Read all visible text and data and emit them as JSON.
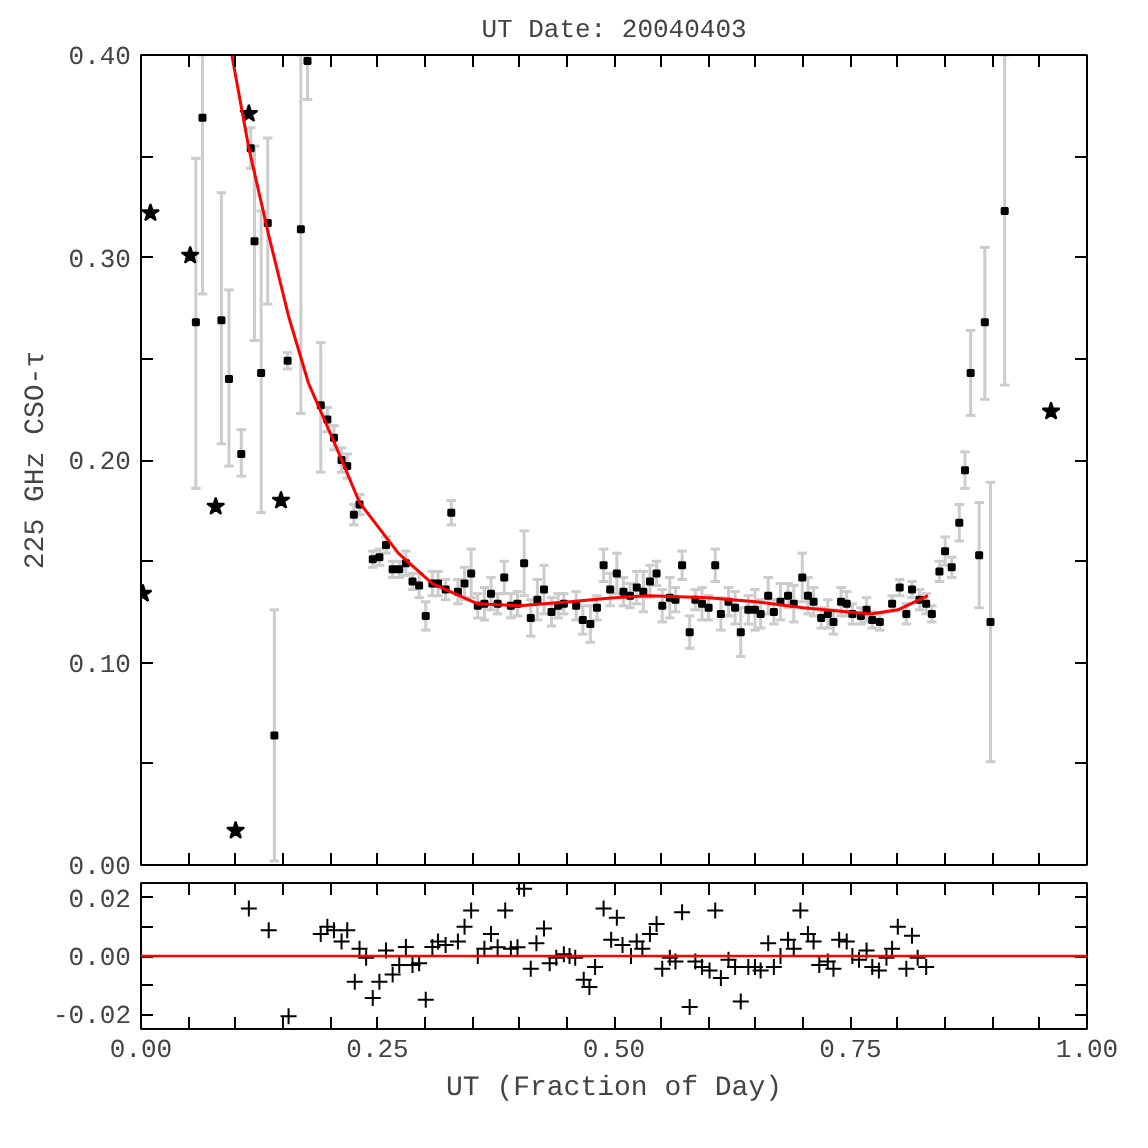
{
  "chart_data": [
    {
      "type": "scatter",
      "title": "UT Date: 20040403",
      "ylabel": "225 GHz CSO-τ",
      "xlim": [
        0,
        1
      ],
      "ylim": [
        0,
        0.4
      ],
      "xticks": [
        {
          "value": 0,
          "label": null
        },
        {
          "value": 0.05,
          "label": null
        },
        {
          "value": 0.1,
          "label": null
        },
        {
          "value": 0.15,
          "label": null
        },
        {
          "value": 0.2,
          "label": null
        },
        {
          "value": 0.25,
          "label": null
        },
        {
          "value": 0.3,
          "label": null
        },
        {
          "value": 0.35,
          "label": null
        },
        {
          "value": 0.4,
          "label": null
        },
        {
          "value": 0.45,
          "label": null
        },
        {
          "value": 0.5,
          "label": null
        },
        {
          "value": 0.55,
          "label": null
        },
        {
          "value": 0.6,
          "label": null
        },
        {
          "value": 0.65,
          "label": null
        },
        {
          "value": 0.7,
          "label": null
        },
        {
          "value": 0.75,
          "label": null
        },
        {
          "value": 0.8,
          "label": null
        },
        {
          "value": 0.85,
          "label": null
        },
        {
          "value": 0.9,
          "label": null
        },
        {
          "value": 0.95,
          "label": null
        },
        {
          "value": 1,
          "label": null
        }
      ],
      "yticks": [
        {
          "value": 0,
          "label": "0.00"
        },
        {
          "value": 0.05,
          "label": null
        },
        {
          "value": 0.1,
          "label": "0.10"
        },
        {
          "value": 0.15,
          "label": null
        },
        {
          "value": 0.2,
          "label": "0.20"
        },
        {
          "value": 0.25,
          "label": null
        },
        {
          "value": 0.3,
          "label": "0.30"
        },
        {
          "value": 0.35,
          "label": null
        },
        {
          "value": 0.4,
          "label": "0.40"
        }
      ],
      "tick_labels": "y",
      "grid": false,
      "series": [
        {
          "marker": "square",
          "color": "#000000",
          "x": [
            0.058,
            0.065,
            0.085,
            0.093,
            0.106,
            0.116,
            0.12,
            0.127,
            0.134,
            0.141,
            0.155,
            0.169,
            0.176,
            0.19,
            0.197,
            0.204,
            0.212,
            0.218,
            0.225,
            0.231,
            0.245,
            0.252,
            0.259,
            0.266,
            0.273,
            0.28,
            0.287,
            0.294,
            0.301,
            0.308,
            0.314,
            0.322,
            0.328,
            0.335,
            0.342,
            0.349,
            0.356,
            0.363,
            0.37,
            0.377,
            0.384,
            0.391,
            0.398,
            0.405,
            0.412,
            0.419,
            0.426,
            0.434,
            0.441,
            0.447,
            0.46,
            0.467,
            0.475,
            0.482,
            0.489,
            0.496,
            0.503,
            0.51,
            0.517,
            0.524,
            0.531,
            0.538,
            0.545,
            0.551,
            0.559,
            0.565,
            0.572,
            0.58,
            0.586,
            0.593,
            0.6,
            0.607,
            0.613,
            0.621,
            0.628,
            0.634,
            0.642,
            0.649,
            0.655,
            0.663,
            0.669,
            0.676,
            0.684,
            0.69,
            0.699,
            0.705,
            0.711,
            0.719,
            0.726,
            0.732,
            0.74,
            0.746,
            0.752,
            0.761,
            0.767,
            0.773,
            0.781,
            0.794,
            0.802,
            0.809,
            0.815,
            0.823,
            0.83,
            0.836,
            0.844,
            0.85,
            0.857,
            0.865,
            0.871,
            0.877,
            0.886,
            0.892,
            0.898,
            0.913
          ],
          "values": [
            0.268,
            0.369,
            0.269,
            0.24,
            0.203,
            0.354,
            0.308,
            0.243,
            0.317,
            0.064,
            0.249,
            0.314,
            0.397,
            0.227,
            0.22,
            0.211,
            0.2,
            0.197,
            0.173,
            0.178,
            0.151,
            0.152,
            0.158,
            0.146,
            0.146,
            0.149,
            0.14,
            0.138,
            0.123,
            0.139,
            0.139,
            0.136,
            0.174,
            0.135,
            0.139,
            0.144,
            0.128,
            0.129,
            0.134,
            0.129,
            0.142,
            0.128,
            0.129,
            0.149,
            0.122,
            0.131,
            0.136,
            0.125,
            0.128,
            0.129,
            0.128,
            0.121,
            0.119,
            0.127,
            0.148,
            0.136,
            0.144,
            0.135,
            0.133,
            0.137,
            0.135,
            0.14,
            0.144,
            0.128,
            0.132,
            0.131,
            0.148,
            0.115,
            0.131,
            0.129,
            0.127,
            0.148,
            0.124,
            0.13,
            0.127,
            0.115,
            0.126,
            0.126,
            0.124,
            0.133,
            0.125,
            0.13,
            0.133,
            0.129,
            0.142,
            0.133,
            0.13,
            0.122,
            0.124,
            0.12,
            0.13,
            0.129,
            0.124,
            0.123,
            0.126,
            0.121,
            0.12,
            0.129,
            0.137,
            0.124,
            0.136,
            0.131,
            0.129,
            0.124,
            0.145,
            0.155,
            0.147,
            0.169,
            0.195,
            0.243,
            0.153,
            0.268,
            0.12,
            0.323
          ],
          "errors": [
            [
              0.186,
              0.349
            ],
            [
              0.282,
              0.4
            ],
            [
              0.208,
              0.332
            ],
            [
              0.197,
              0.284
            ],
            [
              0.192,
              0.215
            ],
            0.01,
            [
              0.259,
              0.355
            ],
            [
              0.174,
              0.323
            ],
            [
              0.277,
              0.359
            ],
            [
              0.002,
              0.126
            ],
            0.004,
            [
              0.223,
              0.4
            ],
            [
              0.378,
              0.4
            ],
            [
              0.194,
              0.258
            ],
            0.006,
            0.006,
            0.006,
            0.006,
            0.005,
            0.005,
            0.004,
            0.004,
            0.004,
            0.004,
            0.004,
            0.006,
            0.004,
            0.006,
            0.007,
            0.006,
            0.006,
            0.005,
            0.006,
            0.006,
            0.008,
            0.012,
            0.006,
            0.008,
            0.008,
            0.005,
            0.008,
            0.006,
            0.006,
            0.016,
            0.009,
            0.01,
            0.012,
            0.007,
            0.006,
            0.005,
            0.007,
            0.007,
            0.009,
            0.006,
            0.008,
            0.008,
            0.01,
            0.007,
            0.006,
            0.008,
            0.01,
            0.008,
            0.006,
            0.008,
            0.01,
            0.006,
            0.007,
            0.008,
            0.005,
            0.008,
            0.006,
            0.008,
            0.008,
            0.007,
            0.008,
            0.012,
            0.007,
            0.01,
            0.007,
            0.009,
            0.006,
            0.009,
            0.006,
            0.009,
            0.012,
            0.009,
            0.007,
            0.005,
            0.007,
            0.006,
            0.007,
            0.006,
            0.005,
            0.004,
            0.006,
            0.004,
            0.004,
            0.004,
            0.004,
            0.005,
            0.004,
            0.005,
            0.005,
            0.004,
            0.005,
            0.007,
            0.005,
            0.009,
            0.009,
            [
              0.222,
              0.264
            ],
            [
              0.127,
              0.179
            ],
            [
              0.23,
              0.305
            ],
            [
              0.051,
              0.189
            ],
            [
              0.237,
              0.4
            ]
          ]
        },
        {
          "marker": "star",
          "color": "#000000",
          "x": [
            0.002,
            0.01,
            0.052,
            0.079,
            0.1,
            0.114,
            0.148,
            0.962
          ],
          "values": [
            0.134,
            0.322,
            0.301,
            0.177,
            0.017,
            0.371,
            0.18,
            0.224
          ]
        },
        {
          "type": "line",
          "color": "#ff0000",
          "line_style": "solid",
          "x": [
            0.096,
            0.114,
            0.135,
            0.156,
            0.177,
            0.204,
            0.231,
            0.272,
            0.308,
            0.356,
            0.4,
            0.453,
            0.5,
            0.537,
            0.6,
            0.65,
            0.7,
            0.771,
            0.8,
            0.832
          ],
          "values": [
            0.4,
            0.354,
            0.311,
            0.271,
            0.238,
            0.209,
            0.179,
            0.154,
            0.139,
            0.129,
            0.128,
            0.13,
            0.132,
            0.133,
            0.132,
            0.13,
            0.127,
            0.124,
            0.126,
            0.133
          ]
        }
      ]
    },
    {
      "type": "scatter",
      "xlabel": "UT (Fraction of Day)",
      "xlim": [
        0,
        1
      ],
      "ylim": [
        -0.025,
        0.025
      ],
      "xticks": [
        {
          "value": 0,
          "label": "0.00"
        },
        {
          "value": 0.05,
          "label": null
        },
        {
          "value": 0.1,
          "label": null
        },
        {
          "value": 0.15,
          "label": null
        },
        {
          "value": 0.2,
          "label": null
        },
        {
          "value": 0.25,
          "label": "0.25"
        },
        {
          "value": 0.3,
          "label": null
        },
        {
          "value": 0.35,
          "label": null
        },
        {
          "value": 0.4,
          "label": null
        },
        {
          "value": 0.45,
          "label": null
        },
        {
          "value": 0.5,
          "label": "0.50"
        },
        {
          "value": 0.55,
          "label": null
        },
        {
          "value": 0.6,
          "label": null
        },
        {
          "value": 0.65,
          "label": null
        },
        {
          "value": 0.7,
          "label": null
        },
        {
          "value": 0.75,
          "label": "0.75"
        },
        {
          "value": 0.8,
          "label": null
        },
        {
          "value": 0.85,
          "label": null
        },
        {
          "value": 0.9,
          "label": null
        },
        {
          "value": 0.95,
          "label": null
        },
        {
          "value": 1,
          "label": "1.00"
        }
      ],
      "yticks": [
        {
          "value": -0.02,
          "label": "-0.02"
        },
        {
          "value": -0.01,
          "label": null
        },
        {
          "value": 0,
          "label": "0.00"
        },
        {
          "value": 0.01,
          "label": null
        },
        {
          "value": 0.02,
          "label": "0.02"
        }
      ],
      "grid": false,
      "ref_lines": [
        {
          "axis": "y",
          "value": 0,
          "color": "#ff0000",
          "line_style": "solid"
        }
      ],
      "series": [
        {
          "marker": "cross",
          "color": "#000000",
          "x": [
            0.114,
            0.135,
            0.156,
            0.19,
            0.197,
            0.204,
            0.212,
            0.218,
            0.226,
            0.231,
            0.238,
            0.245,
            0.252,
            0.259,
            0.266,
            0.273,
            0.28,
            0.287,
            0.294,
            0.301,
            0.308,
            0.314,
            0.322,
            0.335,
            0.342,
            0.349,
            0.356,
            0.363,
            0.37,
            0.377,
            0.385,
            0.391,
            0.398,
            0.405,
            0.412,
            0.418,
            0.426,
            0.432,
            0.439,
            0.447,
            0.453,
            0.459,
            0.468,
            0.474,
            0.48,
            0.489,
            0.497,
            0.503,
            0.509,
            0.518,
            0.524,
            0.53,
            0.538,
            0.545,
            0.551,
            0.559,
            0.565,
            0.572,
            0.58,
            0.586,
            0.593,
            0.601,
            0.607,
            0.613,
            0.621,
            0.628,
            0.634,
            0.642,
            0.649,
            0.655,
            0.663,
            0.669,
            0.676,
            0.684,
            0.69,
            0.697,
            0.705,
            0.711,
            0.717,
            0.726,
            0.732,
            0.738,
            0.746,
            0.752,
            0.759,
            0.767,
            0.773,
            0.78,
            0.788,
            0.794,
            0.8,
            0.809,
            0.815,
            0.821,
            0.83
          ],
          "values": [
            0.0163,
            0.0088,
            -0.0206,
            0.0075,
            0.01,
            0.0088,
            0.005,
            0.0088,
            -0.0088,
            0.0025,
            -0.0006,
            -0.0144,
            -0.0088,
            0.0019,
            -0.0063,
            -0.0031,
            0.0031,
            -0.0031,
            -0.0025,
            -0.015,
            0.0031,
            0.005,
            0.0038,
            0.005,
            0.01,
            0.0156,
            0.0,
            0.0025,
            0.0075,
            0.003,
            0.0156,
            0.0025,
            0.003,
            0.023,
            -0.0044,
            0.0044,
            0.0094,
            -0.0025,
            -0.0006,
            0.0006,
            0.0,
            -0.0006,
            -0.0081,
            -0.0106,
            -0.0038,
            0.0163,
            0.0056,
            0.0131,
            0.0038,
            0.0,
            0.005,
            0.0025,
            0.0075,
            0.011,
            -0.0044,
            -0.0006,
            -0.0019,
            0.015,
            -0.0175,
            -0.0019,
            -0.0038,
            -0.005,
            0.0156,
            -0.0075,
            -0.0013,
            -0.0038,
            -0.0156,
            -0.0038,
            -0.0038,
            -0.005,
            0.0044,
            -0.0038,
            0.0,
            0.0056,
            0.0025,
            0.0156,
            0.0075,
            0.005,
            -0.0031,
            -0.0019,
            -0.0044,
            0.0056,
            0.005,
            0.0,
            -0.0013,
            0.0019,
            -0.0038,
            -0.005,
            -0.0006,
            0.0025,
            0.01,
            -0.0044,
            0.0069,
            -0.0006,
            -0.0038
          ]
        }
      ]
    }
  ]
}
